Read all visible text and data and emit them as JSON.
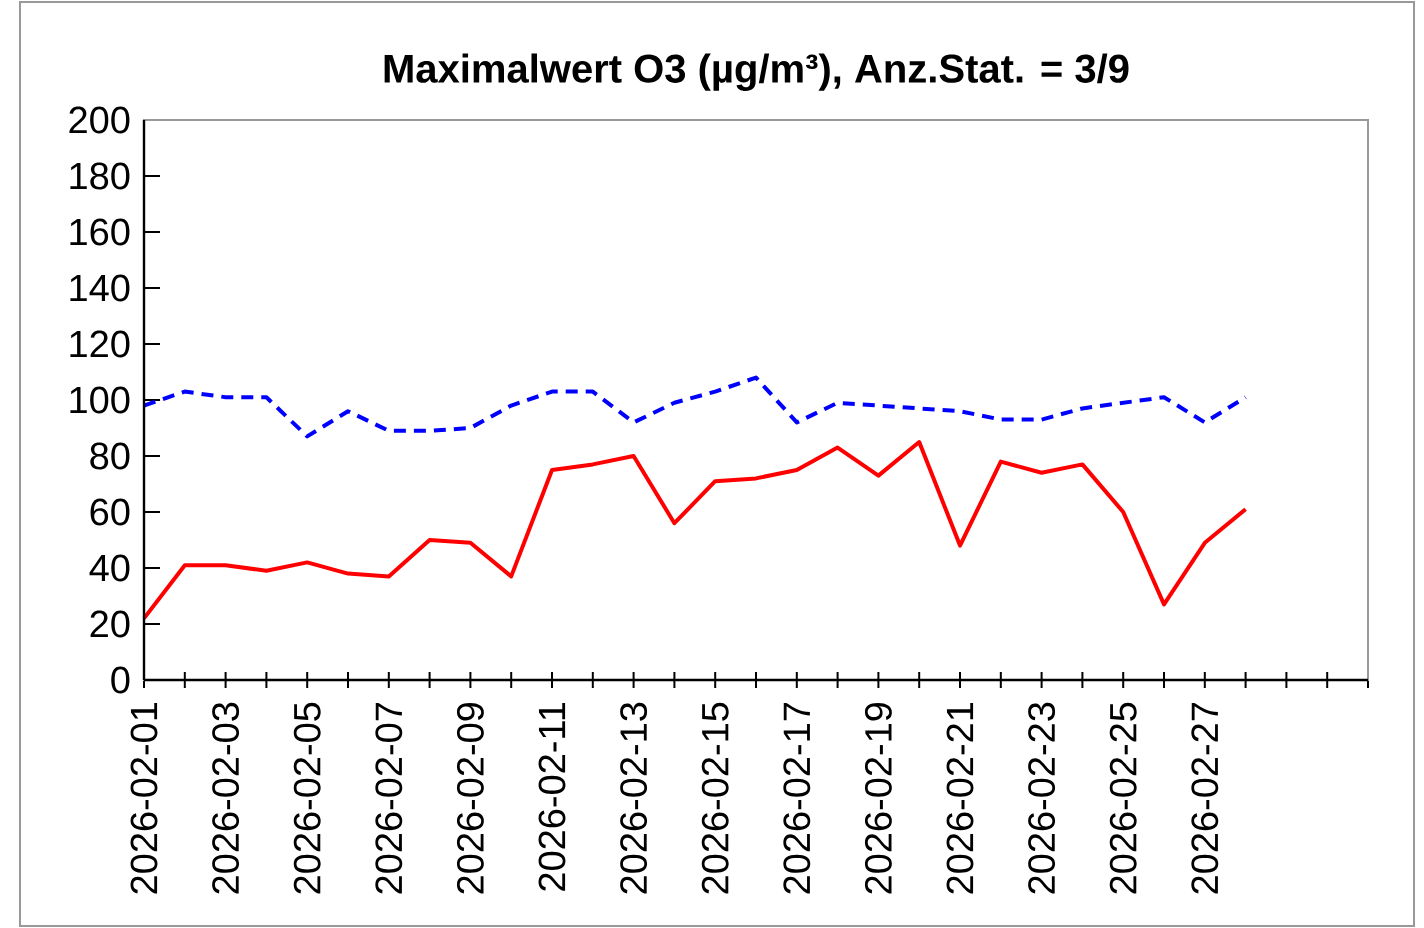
{
  "chart_data": {
    "type": "line",
    "title": "Maximalwert O3 (µg/m³), Anz.Stat. = 3/9",
    "x": [
      "2026-02-01",
      "2026-02-02",
      "2026-02-03",
      "2026-02-04",
      "2026-02-05",
      "2026-02-06",
      "2026-02-07",
      "2026-02-08",
      "2026-02-09",
      "2026-02-10",
      "2026-02-11",
      "2026-02-12",
      "2026-02-13",
      "2026-02-14",
      "2026-02-15",
      "2026-02-16",
      "2026-02-17",
      "2026-02-18",
      "2026-02-19",
      "2026-02-20",
      "2026-02-21",
      "2026-02-22",
      "2026-02-23",
      "2026-02-24",
      "2026-02-25",
      "2026-02-26",
      "2026-02-27",
      "2026-02-28"
    ],
    "series": [
      {
        "color": "#0000ff",
        "line_style": "dashed",
        "values": [
          98,
          103,
          101,
          101,
          87,
          96,
          89,
          89,
          90,
          98,
          103,
          103,
          92,
          99,
          103,
          108,
          92,
          99,
          98,
          97,
          96,
          93,
          93,
          97,
          99,
          101,
          92,
          101
        ]
      },
      {
        "color": "#ff0000",
        "line_style": "solid",
        "values": [
          22,
          41,
          41,
          39,
          42,
          38,
          37,
          50,
          49,
          37,
          75,
          77,
          80,
          56,
          71,
          72,
          75,
          83,
          73,
          85,
          48,
          78,
          74,
          77,
          60,
          27,
          49,
          61
        ]
      }
    ],
    "xlim": [
      "2026-02-01",
      "2026-03-03"
    ],
    "xticks": [
      {
        "value": "2026-02-01",
        "label": "2026-02-01"
      },
      {
        "value": "2026-02-02",
        "label": null
      },
      {
        "value": "2026-02-03",
        "label": "2026-02-03"
      },
      {
        "value": "2026-02-04",
        "label": null
      },
      {
        "value": "2026-02-05",
        "label": "2026-02-05"
      },
      {
        "value": "2026-02-06",
        "label": null
      },
      {
        "value": "2026-02-07",
        "label": "2026-02-07"
      },
      {
        "value": "2026-02-08",
        "label": null
      },
      {
        "value": "2026-02-09",
        "label": "2026-02-09"
      },
      {
        "value": "2026-02-10",
        "label": null
      },
      {
        "value": "2026-02-11",
        "label": "2026-02-11"
      },
      {
        "value": "2026-02-12",
        "label": null
      },
      {
        "value": "2026-02-13",
        "label": "2026-02-13"
      },
      {
        "value": "2026-02-14",
        "label": null
      },
      {
        "value": "2026-02-15",
        "label": "2026-02-15"
      },
      {
        "value": "2026-02-16",
        "label": null
      },
      {
        "value": "2026-02-17",
        "label": "2026-02-17"
      },
      {
        "value": "2026-02-18",
        "label": null
      },
      {
        "value": "2026-02-19",
        "label": "2026-02-19"
      },
      {
        "value": "2026-02-20",
        "label": null
      },
      {
        "value": "2026-02-21",
        "label": "2026-02-21"
      },
      {
        "value": "2026-02-22",
        "label": null
      },
      {
        "value": "2026-02-23",
        "label": "2026-02-23"
      },
      {
        "value": "2026-02-24",
        "label": null
      },
      {
        "value": "2026-02-25",
        "label": "2026-02-25"
      },
      {
        "value": "2026-02-26",
        "label": null
      },
      {
        "value": "2026-02-27",
        "label": "2026-02-27"
      },
      {
        "value": "2026-02-28",
        "label": null
      },
      {
        "value": "2026-03-01",
        "label": null
      },
      {
        "value": "2026-03-02",
        "label": null
      },
      {
        "value": "2026-03-03",
        "label": null
      }
    ],
    "ylim": [
      0,
      200
    ],
    "yticks": [
      0,
      20,
      40,
      60,
      80,
      100,
      120,
      140,
      160,
      180,
      200
    ],
    "grid": false,
    "marker": "none"
  }
}
